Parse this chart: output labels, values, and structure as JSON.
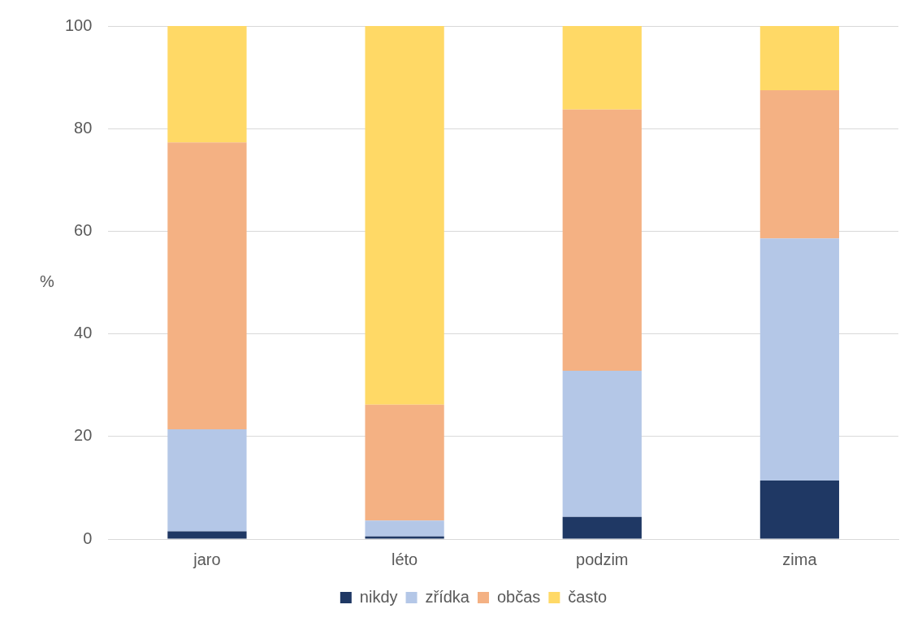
{
  "chart_data": {
    "type": "bar",
    "stacked": true,
    "ylabel": "%",
    "categories": [
      "jaro",
      "léto",
      "podzim",
      "zima"
    ],
    "series": [
      {
        "name": "nikdy",
        "color": "#1f3864",
        "values": [
          1.5,
          0.5,
          4.3,
          11.4
        ]
      },
      {
        "name": "zřídka",
        "color": "#b4c7e7",
        "values": [
          19.9,
          3.1,
          28.5,
          47.2
        ]
      },
      {
        "name": "občas",
        "color": "#f4b183",
        "values": [
          55.9,
          22.6,
          50.9,
          28.9
        ]
      },
      {
        "name": "často",
        "color": "#ffd966",
        "values": [
          22.7,
          73.8,
          16.3,
          12.5
        ]
      }
    ],
    "ylim": [
      0,
      100
    ],
    "yticks": [
      0,
      20,
      40,
      60,
      80,
      100
    ],
    "grid": "y",
    "legend": "bottom"
  }
}
